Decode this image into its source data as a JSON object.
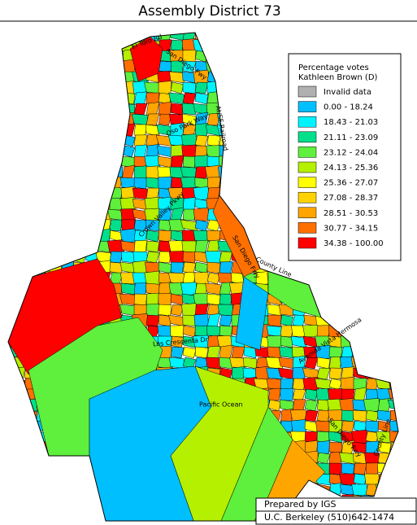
{
  "title": "Assembly District 73",
  "legend": {
    "title_lines": [
      "Percentage votes",
      "Kathleen Brown (D)"
    ],
    "items": [
      {
        "label": "Invalid data",
        "color": "#b0b0b0"
      },
      {
        "label": "0.00 -  18.24",
        "color": "#00bfff"
      },
      {
        "label": "18.43 -  21.03",
        "color": "#00f4ff"
      },
      {
        "label": "21.11 -  23.09",
        "color": "#00e08a"
      },
      {
        "label": "23.12 -  24.04",
        "color": "#5ef03c"
      },
      {
        "label": "24.13 -  25.36",
        "color": "#b4f000"
      },
      {
        "label": "25.36 -  27.07",
        "color": "#ffff00"
      },
      {
        "label": "27.08 -  28.37",
        "color": "#ffd200"
      },
      {
        "label": "28.51 -  30.53",
        "color": "#ffa500"
      },
      {
        "label": "30.77 -  34.15",
        "color": "#ff7000"
      },
      {
        "label": "34.38 - 100.00",
        "color": "#ff0000"
      }
    ]
  },
  "roads": [
    "El Toro Rd",
    "San Diego Fwy",
    "At/SF Railroad",
    "Oso Park Way",
    "Crown Valley Pkwy",
    "San Diego Fwy",
    "County Line",
    "Pacific Ocean",
    "Los Crescenta Dr",
    "Avenida Vista Hermosa",
    "San Diego Fwy",
    "County Line"
  ],
  "footer": [
    "Prepared by IGS",
    "U.C. Berkeley  (510)642-1474"
  ]
}
